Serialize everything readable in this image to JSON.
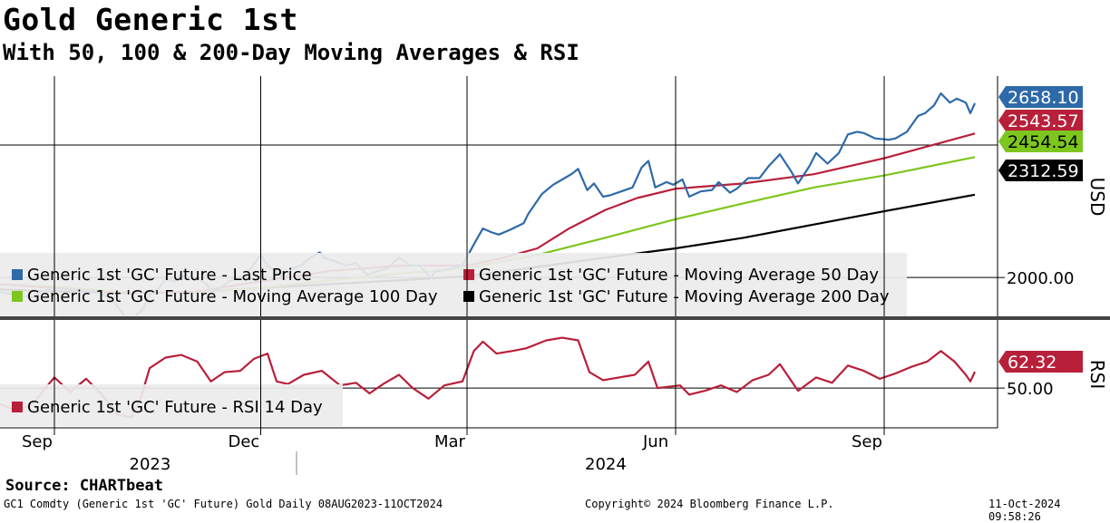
{
  "header": {
    "title": "Gold Generic 1st",
    "subtitle": "With 50, 100 & 200-Day Moving Averages & RSI"
  },
  "footer": {
    "source": "Source: CHARTbeat",
    "ticker_info": "GC1 Comdty (Generic 1st 'GC' Future) Gold  Daily 08AUG2023-11OCT2024",
    "copyright": "Copyright© 2024 Bloomberg Finance L.P.",
    "timestamp": "11-Oct-2024 09:58:26"
  },
  "colors": {
    "last_price": "#2e6aa8",
    "ma50": "#b8203a",
    "ma100": "#7dc61e",
    "ma200": "#000000",
    "rsi": "#b8203a"
  },
  "chart_data": [
    {
      "type": "line",
      "panel": "price",
      "ylabel": "USD",
      "ylim": [
        1850,
        2760
      ],
      "x_range": [
        "2023-08-08",
        "2024-10-11"
      ],
      "ticks": [
        {
          "value": 2000,
          "label": "2000.00"
        }
      ],
      "series": [
        {
          "name": "Generic 1st 'GC' Future - Last Price",
          "label": "2658.10",
          "color_key": "last_price",
          "points": [
            [
              "2023-08-08",
              1945
            ],
            [
              "2023-08-15",
              1935
            ],
            [
              "2023-08-22",
              1925
            ],
            [
              "2023-08-29",
              1955
            ],
            [
              "2023-09-05",
              1960
            ],
            [
              "2023-09-12",
              1945
            ],
            [
              "2023-09-19",
              1950
            ],
            [
              "2023-09-26",
              1920
            ],
            [
              "2023-10-02",
              1855
            ],
            [
              "2023-10-06",
              1850
            ],
            [
              "2023-10-10",
              1880
            ],
            [
              "2023-10-13",
              1935
            ],
            [
              "2023-10-17",
              1958
            ],
            [
              "2023-10-20",
              1995
            ],
            [
              "2023-10-24",
              1985
            ],
            [
              "2023-10-27",
              2008
            ],
            [
              "2023-10-31",
              1998
            ],
            [
              "2023-11-03",
              2000
            ],
            [
              "2023-11-07",
              1975
            ],
            [
              "2023-11-10",
              1945
            ],
            [
              "2023-11-14",
              1965
            ],
            [
              "2023-11-17",
              1985
            ],
            [
              "2023-11-21",
              2000
            ],
            [
              "2023-11-24",
              2005
            ],
            [
              "2023-11-28",
              2050
            ],
            [
              "2023-12-01",
              2085
            ],
            [
              "2023-12-04",
              2045
            ],
            [
              "2023-12-08",
              2020
            ],
            [
              "2023-12-12",
              1995
            ],
            [
              "2023-12-15",
              2035
            ],
            [
              "2023-12-19",
              2045
            ],
            [
              "2023-12-22",
              2070
            ],
            [
              "2023-12-27",
              2095
            ],
            [
              "2023-12-29",
              2075
            ],
            [
              "2024-01-03",
              2060
            ],
            [
              "2024-01-08",
              2045
            ],
            [
              "2024-01-12",
              2055
            ],
            [
              "2024-01-17",
              2010
            ],
            [
              "2024-01-22",
              2025
            ],
            [
              "2024-01-26",
              2035
            ],
            [
              "2024-01-31",
              2075
            ],
            [
              "2024-02-05",
              2045
            ],
            [
              "2024-02-09",
              2045
            ],
            [
              "2024-02-14",
              1998
            ],
            [
              "2024-02-16",
              2022
            ],
            [
              "2024-02-22",
              2032
            ],
            [
              "2024-02-28",
              2045
            ],
            [
              "2024-03-04",
              2125
            ],
            [
              "2024-03-08",
              2185
            ],
            [
              "2024-03-12",
              2170
            ],
            [
              "2024-03-15",
              2162
            ],
            [
              "2024-03-20",
              2180
            ],
            [
              "2024-03-26",
              2205
            ],
            [
              "2024-03-28",
              2240
            ],
            [
              "2024-04-03",
              2315
            ],
            [
              "2024-04-08",
              2350
            ],
            [
              "2024-04-12",
              2370
            ],
            [
              "2024-04-16",
              2390
            ],
            [
              "2024-04-19",
              2410
            ],
            [
              "2024-04-23",
              2330
            ],
            [
              "2024-04-26",
              2355
            ],
            [
              "2024-04-30",
              2305
            ],
            [
              "2024-05-03",
              2310
            ],
            [
              "2024-05-08",
              2325
            ],
            [
              "2024-05-13",
              2340
            ],
            [
              "2024-05-17",
              2415
            ],
            [
              "2024-05-20",
              2440
            ],
            [
              "2024-05-23",
              2340
            ],
            [
              "2024-05-28",
              2360
            ],
            [
              "2024-05-31",
              2350
            ],
            [
              "2024-06-04",
              2370
            ],
            [
              "2024-06-07",
              2305
            ],
            [
              "2024-06-12",
              2325
            ],
            [
              "2024-06-17",
              2330
            ],
            [
              "2024-06-20",
              2360
            ],
            [
              "2024-06-25",
              2320
            ],
            [
              "2024-06-28",
              2335
            ],
            [
              "2024-07-03",
              2375
            ],
            [
              "2024-07-08",
              2375
            ],
            [
              "2024-07-12",
              2420
            ],
            [
              "2024-07-17",
              2465
            ],
            [
              "2024-07-22",
              2400
            ],
            [
              "2024-07-25",
              2355
            ],
            [
              "2024-07-30",
              2420
            ],
            [
              "2024-08-02",
              2470
            ],
            [
              "2024-08-07",
              2430
            ],
            [
              "2024-08-12",
              2470
            ],
            [
              "2024-08-16",
              2540
            ],
            [
              "2024-08-20",
              2550
            ],
            [
              "2024-08-23",
              2545
            ],
            [
              "2024-08-28",
              2525
            ],
            [
              "2024-09-03",
              2520
            ],
            [
              "2024-09-06",
              2525
            ],
            [
              "2024-09-11",
              2550
            ],
            [
              "2024-09-16",
              2610
            ],
            [
              "2024-09-19",
              2620
            ],
            [
              "2024-09-23",
              2650
            ],
            [
              "2024-09-26",
              2695
            ],
            [
              "2024-09-30",
              2660
            ],
            [
              "2024-10-03",
              2675
            ],
            [
              "2024-10-07",
              2660
            ],
            [
              "2024-10-09",
              2620
            ],
            [
              "2024-10-11",
              2658
            ]
          ]
        },
        {
          "name": "Generic 1st 'GC' Future - Moving Average 50 Day",
          "label": "2543.57",
          "color_key": "ma50",
          "points": [
            [
              "2023-08-08",
              1975
            ],
            [
              "2023-09-01",
              1960
            ],
            [
              "2023-10-01",
              1940
            ],
            [
              "2023-11-01",
              1945
            ],
            [
              "2023-12-01",
              1985
            ],
            [
              "2024-01-01",
              2025
            ],
            [
              "2024-02-01",
              2045
            ],
            [
              "2024-03-01",
              2045
            ],
            [
              "2024-03-15",
              2070
            ],
            [
              "2024-04-01",
              2110
            ],
            [
              "2024-04-15",
              2185
            ],
            [
              "2024-05-01",
              2255
            ],
            [
              "2024-05-15",
              2300
            ],
            [
              "2024-06-01",
              2335
            ],
            [
              "2024-07-01",
              2355
            ],
            [
              "2024-08-01",
              2390
            ],
            [
              "2024-09-01",
              2450
            ],
            [
              "2024-10-11",
              2543.57
            ]
          ]
        },
        {
          "name": "Generic 1st 'GC' Future - Moving Average 100 Day",
          "label": "2454.54",
          "color_key": "ma100",
          "points": [
            [
              "2023-08-08",
              1975
            ],
            [
              "2023-09-01",
              1965
            ],
            [
              "2023-10-01",
              1945
            ],
            [
              "2023-11-01",
              1942
            ],
            [
              "2023-12-01",
              1960
            ],
            [
              "2024-01-01",
              1990
            ],
            [
              "2024-02-01",
              2015
            ],
            [
              "2024-03-01",
              2035
            ],
            [
              "2024-04-01",
              2085
            ],
            [
              "2024-05-01",
              2150
            ],
            [
              "2024-06-01",
              2220
            ],
            [
              "2024-07-01",
              2280
            ],
            [
              "2024-08-01",
              2340
            ],
            [
              "2024-09-01",
              2385
            ],
            [
              "2024-10-11",
              2454.54
            ]
          ]
        },
        {
          "name": "Generic 1st 'GC' Future - Moving Average 200 Day",
          "label": "2312.59",
          "color_key": "ma200",
          "points": [
            [
              "2023-08-08",
              1955
            ],
            [
              "2023-09-01",
              1948
            ],
            [
              "2023-10-01",
              1942
            ],
            [
              "2023-11-01",
              1945
            ],
            [
              "2023-12-01",
              1960
            ],
            [
              "2024-01-01",
              1975
            ],
            [
              "2024-02-01",
              1990
            ],
            [
              "2024-03-01",
              2005
            ],
            [
              "2024-04-01",
              2040
            ],
            [
              "2024-05-01",
              2075
            ],
            [
              "2024-06-01",
              2110
            ],
            [
              "2024-07-01",
              2150
            ],
            [
              "2024-08-01",
              2200
            ],
            [
              "2024-09-01",
              2250
            ],
            [
              "2024-10-11",
              2312.59
            ]
          ]
        }
      ],
      "legend": [
        "Generic 1st 'GC' Future - Last Price",
        "Generic 1st 'GC' Future - Moving Average 50 Day",
        "Generic 1st 'GC' Future - Moving Average 100 Day",
        "Generic 1st 'GC' Future - Moving Average 200 Day"
      ]
    },
    {
      "type": "line",
      "panel": "rsi",
      "ylabel": "RSI",
      "ylim": [
        20,
        100
      ],
      "ticks": [
        {
          "value": 50,
          "label": "50.00"
        }
      ],
      "series": [
        {
          "name": "Generic 1st 'GC' Future - RSI 14 Day",
          "label": "62.32",
          "color_key": "rsi",
          "points": [
            [
              "2023-08-08",
              38
            ],
            [
              "2023-08-15",
              33
            ],
            [
              "2023-08-22",
              37
            ],
            [
              "2023-08-29",
              52
            ],
            [
              "2023-09-01",
              58
            ],
            [
              "2023-09-08",
              47
            ],
            [
              "2023-09-15",
              57
            ],
            [
              "2023-09-22",
              45
            ],
            [
              "2023-09-29",
              30
            ],
            [
              "2023-10-05",
              28
            ],
            [
              "2023-10-09",
              42
            ],
            [
              "2023-10-13",
              65
            ],
            [
              "2023-10-20",
              73
            ],
            [
              "2023-10-27",
              75
            ],
            [
              "2023-11-03",
              70
            ],
            [
              "2023-11-09",
              55
            ],
            [
              "2023-11-15",
              62
            ],
            [
              "2023-11-22",
              63
            ],
            [
              "2023-11-28",
              72
            ],
            [
              "2023-12-04",
              76
            ],
            [
              "2023-12-08",
              55
            ],
            [
              "2023-12-13",
              53
            ],
            [
              "2023-12-20",
              60
            ],
            [
              "2023-12-28",
              63
            ],
            [
              "2024-01-05",
              52
            ],
            [
              "2024-01-12",
              54
            ],
            [
              "2024-01-18",
              46
            ],
            [
              "2024-01-24",
              53
            ],
            [
              "2024-01-31",
              60
            ],
            [
              "2024-02-06",
              50
            ],
            [
              "2024-02-13",
              42
            ],
            [
              "2024-02-20",
              52
            ],
            [
              "2024-02-28",
              55
            ],
            [
              "2024-03-04",
              78
            ],
            [
              "2024-03-08",
              85
            ],
            [
              "2024-03-14",
              76
            ],
            [
              "2024-03-21",
              78
            ],
            [
              "2024-03-27",
              80
            ],
            [
              "2024-04-05",
              86
            ],
            [
              "2024-04-12",
              88
            ],
            [
              "2024-04-19",
              86
            ],
            [
              "2024-04-24",
              62
            ],
            [
              "2024-04-30",
              56
            ],
            [
              "2024-05-07",
              58
            ],
            [
              "2024-05-14",
              60
            ],
            [
              "2024-05-20",
              70
            ],
            [
              "2024-05-24",
              50
            ],
            [
              "2024-06-03",
              52
            ],
            [
              "2024-06-07",
              45
            ],
            [
              "2024-06-14",
              48
            ],
            [
              "2024-06-21",
              52
            ],
            [
              "2024-06-28",
              47
            ],
            [
              "2024-07-05",
              56
            ],
            [
              "2024-07-12",
              60
            ],
            [
              "2024-07-17",
              68
            ],
            [
              "2024-07-25",
              48
            ],
            [
              "2024-08-02",
              58
            ],
            [
              "2024-08-09",
              54
            ],
            [
              "2024-08-16",
              67
            ],
            [
              "2024-08-23",
              63
            ],
            [
              "2024-08-30",
              57
            ],
            [
              "2024-09-06",
              61
            ],
            [
              "2024-09-13",
              66
            ],
            [
              "2024-09-20",
              70
            ],
            [
              "2024-09-26",
              78
            ],
            [
              "2024-10-02",
              70
            ],
            [
              "2024-10-07",
              60
            ],
            [
              "2024-10-09",
              55
            ],
            [
              "2024-10-11",
              62.32
            ]
          ]
        }
      ],
      "legend": [
        "Generic 1st 'GC' Future - RSI 14 Day"
      ]
    }
  ],
  "x_axis": {
    "month_ticks": [
      {
        "date": "2023-09-01",
        "label": "Sep"
      },
      {
        "date": "2023-12-01",
        "label": "Dec"
      },
      {
        "date": "2024-03-01",
        "label": "Mar"
      },
      {
        "date": "2024-06-01",
        "label": "Jun"
      },
      {
        "date": "2024-09-01",
        "label": "Sep"
      }
    ],
    "year_labels": [
      {
        "date": "2023-10-20",
        "label": "2023"
      },
      {
        "date": "2024-05-08",
        "label": "2024"
      }
    ],
    "year_divider": "2024-01-01"
  }
}
